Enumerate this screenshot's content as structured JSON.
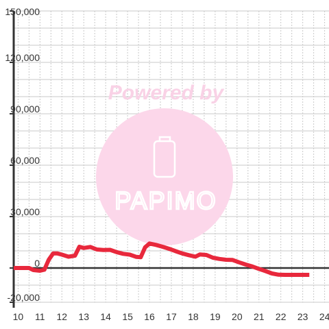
{
  "chart_data": {
    "type": "line",
    "title": "",
    "xlabel": "",
    "ylabel": "",
    "xlim": [
      9.8,
      24.2
    ],
    "ylim": [
      -20000,
      150000
    ],
    "x_ticks": [
      "10",
      "11",
      "12",
      "13",
      "14",
      "15",
      "16",
      "17",
      "18",
      "19",
      "20",
      "21",
      "22",
      "23",
      "24"
    ],
    "y_ticks": [
      "150,000",
      "120,000",
      "90,000",
      "60,000",
      "30,000",
      "0",
      "-20,000"
    ],
    "y_tick_values": [
      150000,
      120000,
      90000,
      60000,
      30000,
      0,
      -20000
    ],
    "grid": true,
    "series": [
      {
        "color": "#e8283c",
        "points": [
          [
            9.8,
            0
          ],
          [
            10.5,
            0
          ],
          [
            10.7,
            -1200
          ],
          [
            11.0,
            -1600
          ],
          [
            11.2,
            -1000
          ],
          [
            11.4,
            4800
          ],
          [
            11.6,
            8500
          ],
          [
            11.8,
            8500
          ],
          [
            12.0,
            7800
          ],
          [
            12.3,
            6600
          ],
          [
            12.6,
            7200
          ],
          [
            12.8,
            12400
          ],
          [
            13.0,
            11700
          ],
          [
            13.3,
            12300
          ],
          [
            13.6,
            10800
          ],
          [
            13.9,
            10500
          ],
          [
            14.2,
            10600
          ],
          [
            14.5,
            9300
          ],
          [
            14.8,
            8300
          ],
          [
            15.1,
            7800
          ],
          [
            15.4,
            6500
          ],
          [
            15.6,
            6300
          ],
          [
            15.8,
            12100
          ],
          [
            16.0,
            14300
          ],
          [
            16.3,
            13500
          ],
          [
            16.6,
            12400
          ],
          [
            16.9,
            11200
          ],
          [
            17.2,
            9800
          ],
          [
            17.5,
            8500
          ],
          [
            17.8,
            7500
          ],
          [
            18.1,
            6600
          ],
          [
            18.3,
            7900
          ],
          [
            18.6,
            7600
          ],
          [
            18.9,
            6000
          ],
          [
            19.2,
            5300
          ],
          [
            19.5,
            4800
          ],
          [
            19.8,
            4700
          ],
          [
            20.1,
            3300
          ],
          [
            20.4,
            2000
          ],
          [
            20.7,
            900
          ],
          [
            21.0,
            -500
          ],
          [
            21.3,
            -1800
          ],
          [
            21.6,
            -3200
          ],
          [
            21.9,
            -3900
          ],
          [
            22.2,
            -4000
          ],
          [
            22.6,
            -4000
          ],
          [
            23.0,
            -4000
          ],
          [
            23.3,
            -4000
          ]
        ]
      }
    ]
  },
  "watermark": {
    "line1": "Powered by",
    "logo_text": "PAPIMO",
    "colors": {
      "text": "#f9d2e6",
      "circle": "#fcd7ea"
    },
    "icon": "phone-icon"
  }
}
